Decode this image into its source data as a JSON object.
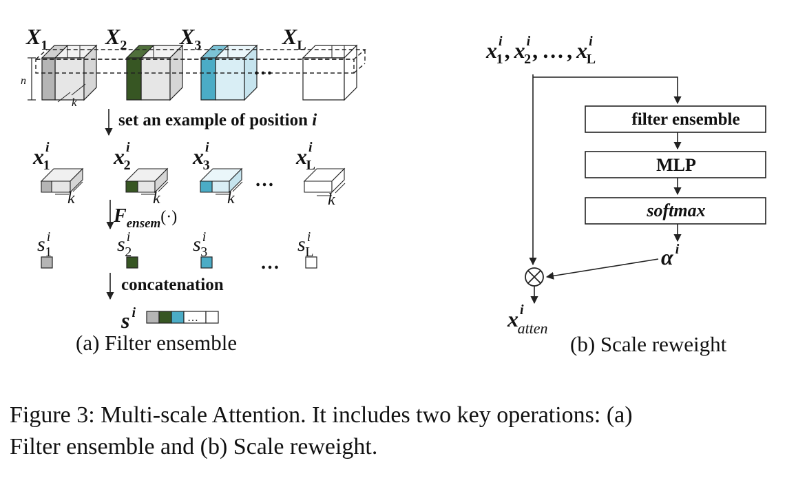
{
  "colors": {
    "gray": "#b5b5b5",
    "green": "#375623",
    "blue": "#4bacc6",
    "white": "#ffffff",
    "box_face": "#e6e6e6",
    "box_face_blue": "#d9eef5",
    "line": "#222222"
  },
  "panel_a": {
    "tensor_labels": [
      {
        "main": "X",
        "sub": "1"
      },
      {
        "main": "X",
        "sub": "2"
      },
      {
        "main": "X",
        "sub": "3"
      },
      {
        "main": "X",
        "sub": "L"
      }
    ],
    "n_label": "n",
    "k_label": "k",
    "ellipsis": "…",
    "step1": {
      "text": "set an example of position ",
      "var": "i"
    },
    "x_labels": [
      {
        "main": "x",
        "sub": "1",
        "sup": "i"
      },
      {
        "main": "x",
        "sub": "2",
        "sup": "i"
      },
      {
        "main": "x",
        "sub": "3",
        "sup": "i"
      },
      {
        "main": "x",
        "sub": "L",
        "sup": "i"
      }
    ],
    "step2": {
      "main": "F",
      "sub": "ensem",
      "args": "(·)"
    },
    "s_labels": [
      {
        "main": "s",
        "sub": "1",
        "sup": "i"
      },
      {
        "main": "s",
        "sub": "2",
        "sup": "i"
      },
      {
        "main": "s",
        "sub": "3",
        "sup": "i"
      },
      {
        "main": "s",
        "sub": "L",
        "sup": "i"
      }
    ],
    "step3": "concatenation",
    "concat_label": {
      "main": "s",
      "sup": "i"
    },
    "subcaption": "(a) Filter ensemble"
  },
  "panel_b": {
    "input_label": {
      "main": "x",
      "subs": [
        "1",
        "2",
        "L"
      ],
      "sup": "i",
      "sep": ",",
      "dots": "…"
    },
    "boxes": [
      "filter ensemble",
      "MLP",
      "softmax"
    ],
    "alpha_label": {
      "main": "α",
      "sup": "i"
    },
    "multiply_symbol": "⊗",
    "output_label": {
      "main": "x",
      "sub": "atten",
      "sup": "i"
    },
    "subcaption": "(b) Scale reweight"
  },
  "caption": {
    "line1": "Figure 3: Multi-scale Attention. It includes two key operations: (a)",
    "line2": "Filter ensemble and (b) Scale reweight."
  }
}
